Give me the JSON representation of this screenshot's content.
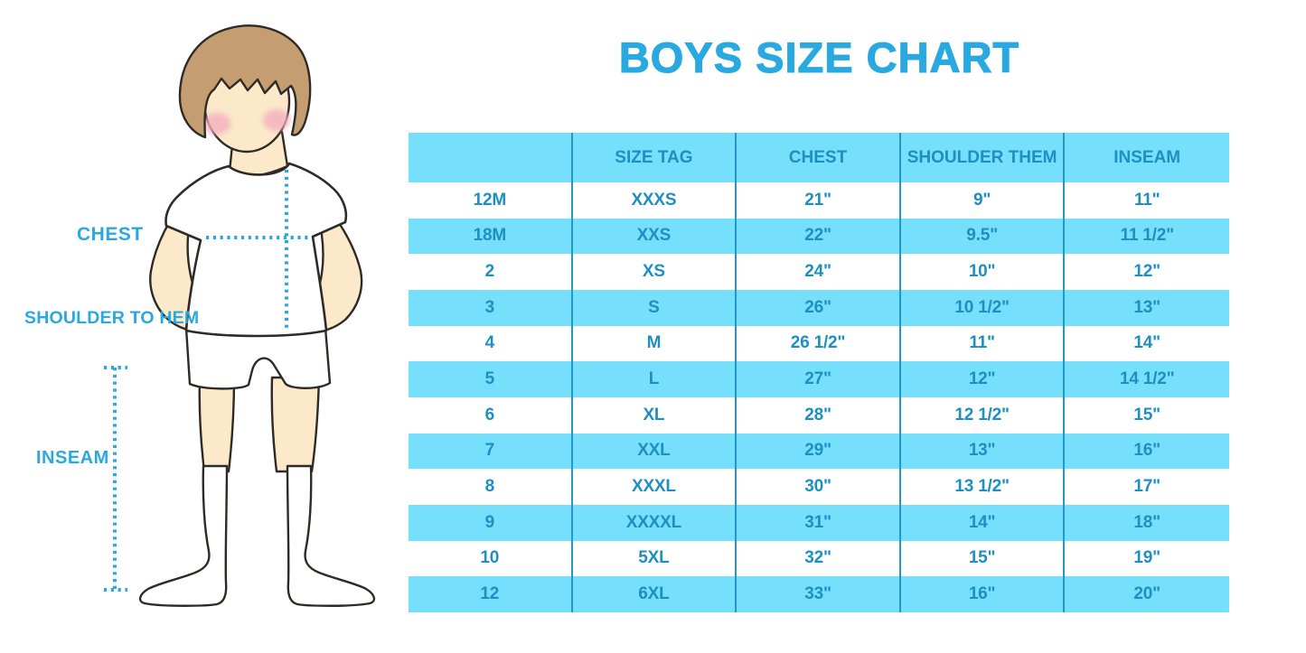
{
  "title": "BOYS SIZE CHART",
  "colors": {
    "accent_blue": "#29A9E0",
    "table_ink": "#1E8FC0",
    "column_divider": "#2596C8",
    "band_cyan": "#76DFFC",
    "hair_brown": "#C49E71",
    "skin": "#FBE9C9",
    "blush_pink": "#F4AEC0"
  },
  "figure": {
    "labels": {
      "chest": "CHEST",
      "shoulder_to_hem": "SHOULDER TO HEM",
      "inseam": "INSEAM"
    }
  },
  "chart_data": {
    "type": "table",
    "title": "BOYS SIZE CHART",
    "columns": [
      "",
      "SIZE TAG",
      "CHEST",
      "SHOULDER THEM",
      "INSEAM"
    ],
    "rows": [
      [
        "12M",
        "XXXS",
        "21\"",
        "9\"",
        "11\""
      ],
      [
        "18M",
        "XXS",
        "22\"",
        "9.5\"",
        "11 1/2\""
      ],
      [
        "2",
        "XS",
        "24\"",
        "10\"",
        "12\""
      ],
      [
        "3",
        "S",
        "26\"",
        "10 1/2\"",
        "13\""
      ],
      [
        "4",
        "M",
        "26 1/2\"",
        "11\"",
        "14\""
      ],
      [
        "5",
        "L",
        "27\"",
        "12\"",
        "14 1/2\""
      ],
      [
        "6",
        "XL",
        "28\"",
        "12 1/2\"",
        "15\""
      ],
      [
        "7",
        "XXL",
        "29\"",
        "13\"",
        "16\""
      ],
      [
        "8",
        "XXXL",
        "30\"",
        "13 1/2\"",
        "17\""
      ],
      [
        "9",
        "XXXXL",
        "31\"",
        "14\"",
        "18\""
      ],
      [
        "10",
        "5XL",
        "32\"",
        "15\"",
        "19\""
      ],
      [
        "12",
        "6XL",
        "33\"",
        "16\"",
        "20\""
      ]
    ],
    "layout": {
      "striping": "header cyan, data rows alternate white/cyan starting white",
      "grid": "vertical column dividers only, no outer border"
    }
  }
}
